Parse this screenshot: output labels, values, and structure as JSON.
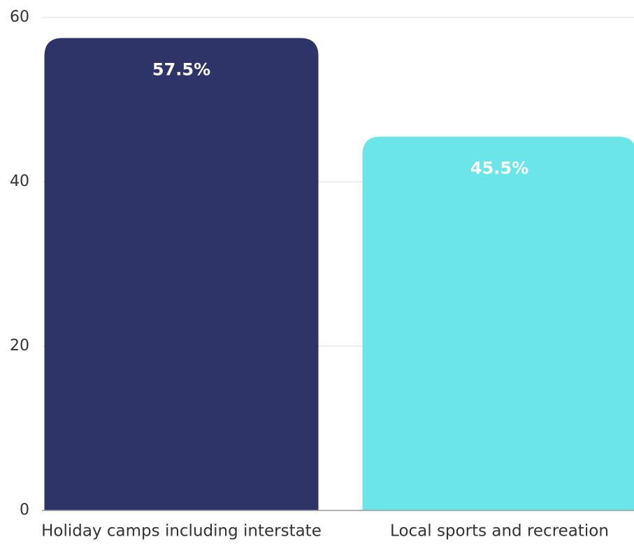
{
  "chart_data": {
    "type": "bar",
    "categories": [
      "Holiday camps including interstate",
      "Local sports and recreation"
    ],
    "values": [
      57.5,
      45.5
    ],
    "value_labels": [
      "57.5%",
      "45.5%"
    ],
    "colors": [
      "#2e3468",
      "#6be5e8"
    ],
    "ylim": [
      0,
      60
    ],
    "yticks": [
      0,
      20,
      40,
      60
    ],
    "grid": true
  }
}
